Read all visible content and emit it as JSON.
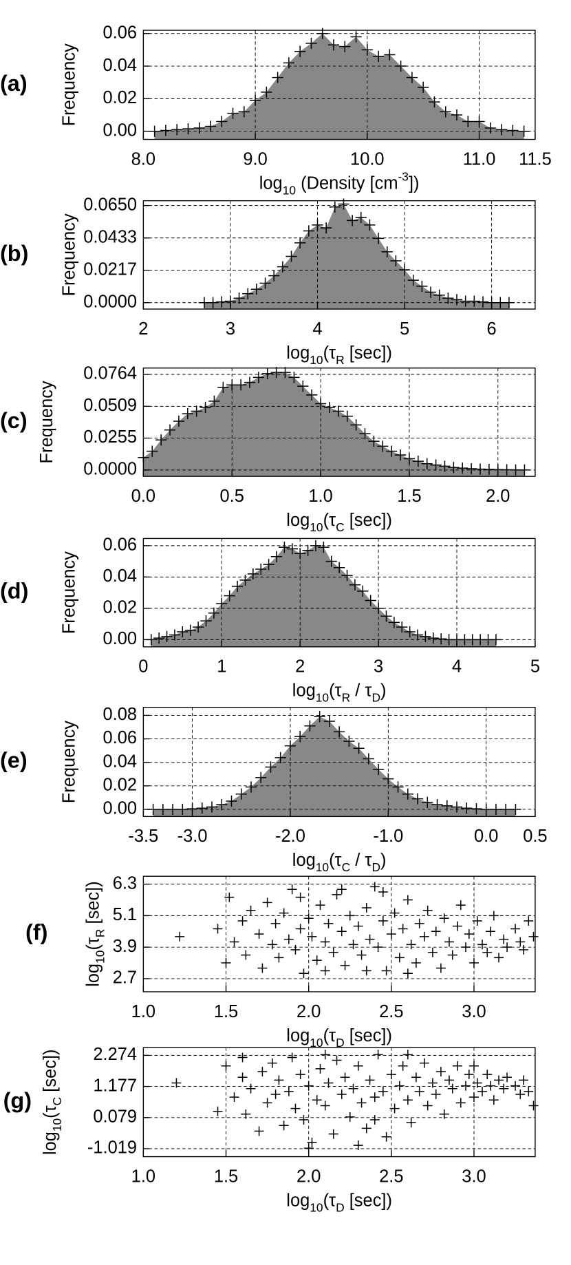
{
  "chart_data": [
    {
      "type": "area",
      "panel_label": "(a)",
      "y_label": "Frequency",
      "x_label": [
        "log",
        "10",
        " (Density [cm",
        "-3",
        "])"
      ],
      "color": "#888888",
      "marker_color": "#000000",
      "grid": true,
      "xlim": [
        8.0,
        11.5
      ],
      "ylim": [
        -0.005,
        0.062
      ],
      "xticks": [
        {
          "value": 8,
          "label": "8.0"
        },
        {
          "value": 9,
          "label": "9.0"
        },
        {
          "value": 10,
          "label": "10.0"
        },
        {
          "value": 11,
          "label": "11.0"
        },
        11.5
      ],
      "yticks": [
        {
          "value": 0,
          "label": "0.00"
        },
        0.02,
        0.04,
        0.06
      ],
      "x": [
        8.1,
        8.2,
        8.3,
        8.4,
        8.5,
        8.6,
        8.7,
        8.8,
        8.9,
        9.0,
        9.1,
        9.2,
        9.3,
        9.4,
        9.5,
        9.6,
        9.7,
        9.8,
        9.9,
        10.0,
        10.1,
        10.2,
        10.3,
        10.4,
        10.5,
        10.6,
        10.7,
        10.8,
        10.9,
        11.0,
        11.1,
        11.2,
        11.3,
        11.4
      ],
      "values": [
        0.0,
        0.0005,
        0.001,
        0.0015,
        0.002,
        0.003,
        0.006,
        0.011,
        0.012,
        0.019,
        0.024,
        0.033,
        0.042,
        0.049,
        0.054,
        0.06,
        0.053,
        0.052,
        0.058,
        0.05,
        0.046,
        0.047,
        0.04,
        0.033,
        0.027,
        0.018,
        0.012,
        0.01,
        0.006,
        0.006,
        0.002,
        0.001,
        0.0005,
        0.0
      ]
    },
    {
      "type": "area",
      "panel_label": "(b)",
      "y_label": "Frequency",
      "x_label": [
        "log",
        "10",
        "(τ",
        "R",
        " [sec])"
      ],
      "color": "#888888",
      "marker_color": "#000000",
      "grid": true,
      "xlim": [
        2,
        6.5
      ],
      "ylim": [
        -0.0043,
        0.0682
      ],
      "xticks": [
        2,
        3,
        4,
        5,
        6
      ],
      "yticks": [
        {
          "value": 0,
          "label": "0.0000"
        },
        0.0217,
        0.0433,
        {
          "value": 0.065,
          "label": "0.0650"
        }
      ],
      "x": [
        2.7,
        2.8,
        2.9,
        3.0,
        3.1,
        3.2,
        3.3,
        3.4,
        3.5,
        3.6,
        3.7,
        3.8,
        3.9,
        4.0,
        4.1,
        4.2,
        4.3,
        4.4,
        4.5,
        4.6,
        4.7,
        4.8,
        4.9,
        5.0,
        5.1,
        5.2,
        5.3,
        5.4,
        5.5,
        5.6,
        5.7,
        5.8,
        5.9,
        6.0,
        6.1,
        6.2
      ],
      "values": [
        0.0,
        0.0,
        0.0005,
        0.001,
        0.003,
        0.006,
        0.009,
        0.013,
        0.018,
        0.024,
        0.031,
        0.04,
        0.048,
        0.052,
        0.05,
        0.064,
        0.066,
        0.055,
        0.057,
        0.052,
        0.043,
        0.034,
        0.028,
        0.022,
        0.015,
        0.011,
        0.007,
        0.005,
        0.003,
        0.002,
        0.001,
        0.001,
        0.0005,
        0.0,
        0.0,
        0.0
      ]
    },
    {
      "type": "area",
      "panel_label": "(c)",
      "y_label": "Frequency",
      "x_label": [
        "log",
        "10",
        "(τ",
        "C",
        " [sec])"
      ],
      "color": "#888888",
      "marker_color": "#000000",
      "grid": true,
      "xlim": [
        0,
        2.21
      ],
      "ylim": [
        -0.0051,
        0.0815
      ],
      "xticks": [
        {
          "value": 0,
          "label": "0.0"
        },
        0.5,
        {
          "value": 1,
          "label": "1.0"
        },
        1.5,
        {
          "value": 2,
          "label": "2.0"
        }
      ],
      "yticks": [
        {
          "value": 0,
          "label": "0.0000"
        },
        0.0255,
        0.0509,
        0.0764
      ],
      "x": [
        0.0,
        0.05,
        0.1,
        0.15,
        0.2,
        0.25,
        0.3,
        0.35,
        0.4,
        0.45,
        0.5,
        0.55,
        0.6,
        0.65,
        0.7,
        0.75,
        0.8,
        0.85,
        0.9,
        0.95,
        1.0,
        1.05,
        1.1,
        1.15,
        1.2,
        1.25,
        1.3,
        1.35,
        1.4,
        1.45,
        1.5,
        1.55,
        1.6,
        1.65,
        1.7,
        1.75,
        1.8,
        1.85,
        1.9,
        1.95,
        2.0,
        2.05,
        2.1,
        2.15
      ],
      "values": [
        0.01,
        0.015,
        0.024,
        0.032,
        0.039,
        0.045,
        0.047,
        0.05,
        0.055,
        0.066,
        0.068,
        0.068,
        0.07,
        0.074,
        0.077,
        0.078,
        0.078,
        0.074,
        0.067,
        0.06,
        0.053,
        0.05,
        0.047,
        0.043,
        0.036,
        0.029,
        0.023,
        0.019,
        0.015,
        0.012,
        0.009,
        0.007,
        0.005,
        0.004,
        0.003,
        0.002,
        0.0015,
        0.001,
        0.0007,
        0.0005,
        0.0003,
        0.0002,
        0.0001,
        0.0
      ]
    },
    {
      "type": "area",
      "panel_label": "(d)",
      "y_label": "Frequency",
      "x_label": [
        "log",
        "10",
        "(τ",
        "R",
        " / τ",
        "D",
        ")"
      ],
      "color": "#888888",
      "marker_color": "#000000",
      "grid": true,
      "xlim": [
        0,
        5
      ],
      "ylim": [
        -0.0046,
        0.0646
      ],
      "xticks": [
        0,
        1,
        2,
        3,
        4,
        5
      ],
      "yticks": [
        {
          "value": 0,
          "label": "0.00"
        },
        0.02,
        0.04,
        0.06
      ],
      "x": [
        0.1,
        0.2,
        0.3,
        0.4,
        0.5,
        0.6,
        0.7,
        0.8,
        0.9,
        1.0,
        1.1,
        1.2,
        1.3,
        1.4,
        1.5,
        1.6,
        1.7,
        1.8,
        1.9,
        2.0,
        2.1,
        2.2,
        2.3,
        2.4,
        2.5,
        2.6,
        2.7,
        2.8,
        2.9,
        3.0,
        3.1,
        3.2,
        3.3,
        3.4,
        3.5,
        3.6,
        3.7,
        3.8,
        3.9,
        4.0,
        4.1,
        4.2,
        4.3,
        4.4,
        4.5
      ],
      "values": [
        0.0,
        0.001,
        0.002,
        0.003,
        0.005,
        0.006,
        0.008,
        0.012,
        0.017,
        0.023,
        0.028,
        0.034,
        0.038,
        0.042,
        0.045,
        0.048,
        0.053,
        0.059,
        0.058,
        0.055,
        0.057,
        0.06,
        0.059,
        0.05,
        0.046,
        0.041,
        0.035,
        0.031,
        0.025,
        0.02,
        0.015,
        0.011,
        0.008,
        0.005,
        0.003,
        0.002,
        0.001,
        0.0005,
        0.0,
        0.0,
        0.0,
        0.0,
        0.0,
        0.0,
        0.0
      ]
    },
    {
      "type": "area",
      "panel_label": "(e)",
      "y_label": "Frequency",
      "x_label": [
        "log",
        "10",
        "(τ",
        "C",
        " / τ",
        "D",
        ")"
      ],
      "color": "#888888",
      "marker_color": "#000000",
      "grid": true,
      "xlim": [
        -3.5,
        0.5
      ],
      "ylim": [
        -0.0061,
        0.0868
      ],
      "xticks": [
        -3.5,
        {
          "value": -3,
          "label": "-3.0"
        },
        {
          "value": -2,
          "label": "-2.0"
        },
        {
          "value": -1,
          "label": "-1.0"
        },
        {
          "value": 0,
          "label": "0.0"
        },
        0.5
      ],
      "yticks": [
        {
          "value": 0,
          "label": "0.00"
        },
        0.02,
        0.04,
        0.06,
        0.08
      ],
      "x": [
        -3.4,
        -3.3,
        -3.2,
        -3.1,
        -3.0,
        -2.9,
        -2.8,
        -2.7,
        -2.6,
        -2.5,
        -2.4,
        -2.3,
        -2.2,
        -2.1,
        -2.0,
        -1.9,
        -1.8,
        -1.7,
        -1.6,
        -1.5,
        -1.4,
        -1.3,
        -1.2,
        -1.1,
        -1.0,
        -0.9,
        -0.8,
        -0.7,
        -0.6,
        -0.5,
        -0.4,
        -0.3,
        -0.2,
        -0.1,
        0.0,
        0.1,
        0.2,
        0.3
      ],
      "values": [
        0.0,
        0.0,
        0.0,
        0.0,
        0.0005,
        0.001,
        0.002,
        0.004,
        0.007,
        0.013,
        0.019,
        0.027,
        0.036,
        0.044,
        0.054,
        0.062,
        0.071,
        0.079,
        0.075,
        0.066,
        0.058,
        0.052,
        0.043,
        0.034,
        0.026,
        0.019,
        0.013,
        0.009,
        0.006,
        0.004,
        0.003,
        0.002,
        0.001,
        0.0005,
        0.0,
        0.0,
        0.0,
        0.0
      ]
    },
    {
      "type": "scatter",
      "panel_label": "(f)",
      "y_label": [
        "log",
        "10",
        "(τ",
        "R",
        " [sec])"
      ],
      "x_label": [
        "log",
        "10",
        "(τ",
        "D",
        " [sec])"
      ],
      "marker_color": "#000000",
      "grid": true,
      "xlim": [
        1.0,
        3.37
      ],
      "ylim": [
        2.2,
        6.6
      ],
      "xticks": [
        {
          "value": 1,
          "label": "1.0"
        },
        1.5,
        {
          "value": 2,
          "label": "2.0"
        },
        2.5,
        {
          "value": 3,
          "label": "3.0"
        }
      ],
      "yticks": [
        2.7,
        3.9,
        5.1,
        6.3
      ],
      "x": [
        1.22,
        1.45,
        1.5,
        1.52,
        1.55,
        1.6,
        1.62,
        1.65,
        1.7,
        1.72,
        1.75,
        1.78,
        1.8,
        1.82,
        1.85,
        1.88,
        1.9,
        1.92,
        1.95,
        1.97,
        2.0,
        2.02,
        2.05,
        2.07,
        2.1,
        2.12,
        2.15,
        2.17,
        2.2,
        2.22,
        2.25,
        2.27,
        2.3,
        2.32,
        2.35,
        2.37,
        2.4,
        2.42,
        2.45,
        2.47,
        2.5,
        2.52,
        2.55,
        2.57,
        2.6,
        2.62,
        2.65,
        2.67,
        2.7,
        2.72,
        2.75,
        2.77,
        2.8,
        2.82,
        2.85,
        2.87,
        2.9,
        2.92,
        2.95,
        2.97,
        3.0,
        3.02,
        3.05,
        3.08,
        3.1,
        3.12,
        3.15,
        3.18,
        3.2,
        3.25,
        3.28,
        3.3,
        3.33,
        3.36,
        2.1,
        2.35,
        2.6,
        1.95,
        2.45,
        2.2
      ],
      "values": [
        4.3,
        4.6,
        3.3,
        5.8,
        4.1,
        4.9,
        3.6,
        5.3,
        4.4,
        3.1,
        5.6,
        4.0,
        4.8,
        3.5,
        5.2,
        4.2,
        6.1,
        3.8,
        4.6,
        2.9,
        5.0,
        4.3,
        3.4,
        5.5,
        4.1,
        4.8,
        3.7,
        5.9,
        4.5,
        3.2,
        5.1,
        4.0,
        4.7,
        3.6,
        5.4,
        4.2,
        6.2,
        3.9,
        4.9,
        3.0,
        4.4,
        5.2,
        3.5,
        4.6,
        5.7,
        4.0,
        3.3,
        4.8,
        4.3,
        5.3,
        3.7,
        4.5,
        3.1,
        5.0,
        4.1,
        3.6,
        4.7,
        5.5,
        3.9,
        4.4,
        3.3,
        4.9,
        4.0,
        3.7,
        4.5,
        5.1,
        3.5,
        4.2,
        3.9,
        4.6,
        4.1,
        3.8,
        4.9,
        4.3,
        3.0,
        3.0,
        2.9,
        5.8,
        6.0,
        6.1
      ]
    },
    {
      "type": "scatter",
      "panel_label": "(g)",
      "y_label": [
        "log",
        "10",
        "(τ",
        "C",
        " [sec])"
      ],
      "x_label": [
        "log",
        "10",
        "(τ",
        "D",
        " [sec])"
      ],
      "marker_color": "#000000",
      "grid": true,
      "xlim": [
        1.0,
        3.37
      ],
      "ylim": [
        -1.3,
        2.55
      ],
      "xticks": [
        {
          "value": 1,
          "label": "1.0"
        },
        1.5,
        {
          "value": 2,
          "label": "2.0"
        },
        2.5,
        {
          "value": 3,
          "label": "3.0"
        }
      ],
      "yticks": [
        -1.019,
        0.079,
        1.177,
        2.274
      ],
      "x": [
        1.2,
        1.45,
        1.5,
        1.55,
        1.6,
        1.62,
        1.65,
        1.7,
        1.72,
        1.75,
        1.78,
        1.8,
        1.82,
        1.85,
        1.88,
        1.9,
        1.92,
        1.95,
        1.97,
        2.0,
        2.02,
        2.05,
        2.07,
        2.1,
        2.12,
        2.15,
        2.17,
        2.2,
        2.22,
        2.25,
        2.27,
        2.3,
        2.32,
        2.35,
        2.37,
        2.4,
        2.42,
        2.45,
        2.47,
        2.5,
        2.52,
        2.55,
        2.57,
        2.6,
        2.62,
        2.65,
        2.67,
        2.7,
        2.72,
        2.75,
        2.77,
        2.8,
        2.82,
        2.85,
        2.87,
        2.9,
        2.92,
        2.95,
        2.97,
        3.0,
        3.02,
        3.05,
        3.08,
        3.1,
        3.12,
        3.15,
        3.18,
        3.2,
        3.25,
        3.28,
        3.3,
        3.33,
        3.36,
        2.0,
        2.3,
        1.6,
        2.6,
        2.1,
        3.0,
        2.4
      ],
      "values": [
        1.3,
        0.3,
        1.9,
        0.8,
        1.5,
        0.2,
        1.1,
        -0.4,
        1.7,
        0.6,
        2.0,
        0.9,
        1.4,
        -0.2,
        1.0,
        2.2,
        0.4,
        1.6,
        0.0,
        1.2,
        -0.8,
        0.7,
        1.8,
        0.5,
        1.3,
        -0.5,
        2.1,
        0.9,
        1.5,
        0.1,
        1.1,
        1.9,
        0.6,
        -0.3,
        1.4,
        0.8,
        2.3,
        1.0,
        -0.6,
        1.6,
        0.4,
        1.2,
        1.9,
        0.7,
        -0.1,
        1.5,
        1.0,
        2.0,
        0.5,
        1.3,
        0.9,
        1.7,
        0.2,
        1.4,
        1.1,
        1.9,
        0.6,
        1.2,
        1.6,
        0.8,
        1.3,
        1.0,
        1.6,
        1.2,
        0.7,
        1.4,
        1.1,
        1.5,
        1.2,
        0.9,
        1.4,
        1.0,
        0.5,
        -1.0,
        -0.9,
        2.2,
        2.3,
        2.3,
        1.9,
        0.0
      ]
    }
  ]
}
